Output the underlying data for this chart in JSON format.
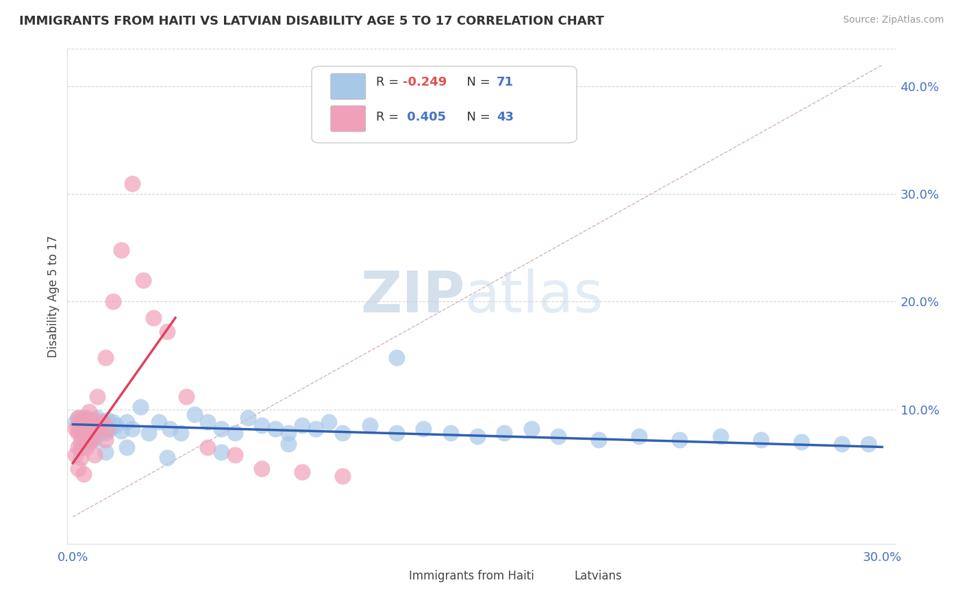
{
  "title": "IMMIGRANTS FROM HAITI VS LATVIAN DISABILITY AGE 5 TO 17 CORRELATION CHART",
  "source": "Source: ZipAtlas.com",
  "ylabel": "Disability Age 5 to 17",
  "xlim": [
    -0.002,
    0.305
  ],
  "ylim": [
    -0.025,
    0.435
  ],
  "color_blue": "#a8c8e8",
  "color_pink": "#f0a0b8",
  "trend_blue": "#3060b0",
  "trend_pink": "#e04060",
  "diag_color": "#d0a0a8",
  "watermark_zip_color": "#b0c8e0",
  "watermark_atlas_color": "#c8d8e8",
  "background_color": "#ffffff",
  "grid_color": "#cccccc",
  "blue_scatter_x": [
    0.001,
    0.002,
    0.002,
    0.003,
    0.003,
    0.004,
    0.004,
    0.005,
    0.005,
    0.006,
    0.006,
    0.007,
    0.007,
    0.008,
    0.008,
    0.009,
    0.009,
    0.01,
    0.01,
    0.011,
    0.011,
    0.012,
    0.013,
    0.014,
    0.015,
    0.016,
    0.018,
    0.02,
    0.022,
    0.025,
    0.028,
    0.032,
    0.036,
    0.04,
    0.045,
    0.05,
    0.055,
    0.06,
    0.065,
    0.07,
    0.075,
    0.08,
    0.085,
    0.09,
    0.095,
    0.1,
    0.11,
    0.12,
    0.13,
    0.14,
    0.15,
    0.16,
    0.17,
    0.18,
    0.195,
    0.21,
    0.225,
    0.24,
    0.255,
    0.27,
    0.285,
    0.295,
    0.003,
    0.005,
    0.008,
    0.012,
    0.02,
    0.035,
    0.055,
    0.08,
    0.12
  ],
  "blue_scatter_y": [
    0.088,
    0.082,
    0.092,
    0.078,
    0.086,
    0.08,
    0.09,
    0.085,
    0.092,
    0.079,
    0.088,
    0.074,
    0.09,
    0.082,
    0.086,
    0.079,
    0.092,
    0.085,
    0.088,
    0.08,
    0.085,
    0.078,
    0.09,
    0.082,
    0.088,
    0.085,
    0.08,
    0.088,
    0.082,
    0.102,
    0.078,
    0.088,
    0.082,
    0.078,
    0.095,
    0.088,
    0.082,
    0.078,
    0.092,
    0.085,
    0.082,
    0.078,
    0.085,
    0.082,
    0.088,
    0.078,
    0.085,
    0.078,
    0.082,
    0.078,
    0.075,
    0.078,
    0.082,
    0.075,
    0.072,
    0.075,
    0.072,
    0.075,
    0.072,
    0.07,
    0.068,
    0.068,
    0.065,
    0.068,
    0.072,
    0.06,
    0.065,
    0.055,
    0.06,
    0.068,
    0.148
  ],
  "pink_scatter_x": [
    0.001,
    0.001,
    0.002,
    0.002,
    0.002,
    0.003,
    0.003,
    0.003,
    0.004,
    0.004,
    0.004,
    0.005,
    0.005,
    0.005,
    0.006,
    0.006,
    0.007,
    0.007,
    0.008,
    0.008,
    0.009,
    0.01,
    0.011,
    0.012,
    0.013,
    0.015,
    0.018,
    0.022,
    0.026,
    0.03,
    0.035,
    0.042,
    0.05,
    0.06,
    0.07,
    0.085,
    0.1,
    0.002,
    0.003,
    0.004,
    0.006,
    0.008,
    0.012
  ],
  "pink_scatter_y": [
    0.082,
    0.058,
    0.078,
    0.065,
    0.092,
    0.082,
    0.07,
    0.09,
    0.076,
    0.085,
    0.092,
    0.078,
    0.088,
    0.065,
    0.08,
    0.07,
    0.085,
    0.072,
    0.082,
    0.09,
    0.112,
    0.085,
    0.088,
    0.072,
    0.082,
    0.2,
    0.248,
    0.31,
    0.22,
    0.185,
    0.172,
    0.112,
    0.065,
    0.058,
    0.045,
    0.042,
    0.038,
    0.045,
    0.055,
    0.04,
    0.098,
    0.058,
    0.148
  ],
  "blue_trend_x": [
    0.0,
    0.3
  ],
  "blue_trend_y": [
    0.086,
    0.065
  ],
  "pink_trend_x": [
    0.0,
    0.038
  ],
  "pink_trend_y": [
    0.05,
    0.185
  ]
}
